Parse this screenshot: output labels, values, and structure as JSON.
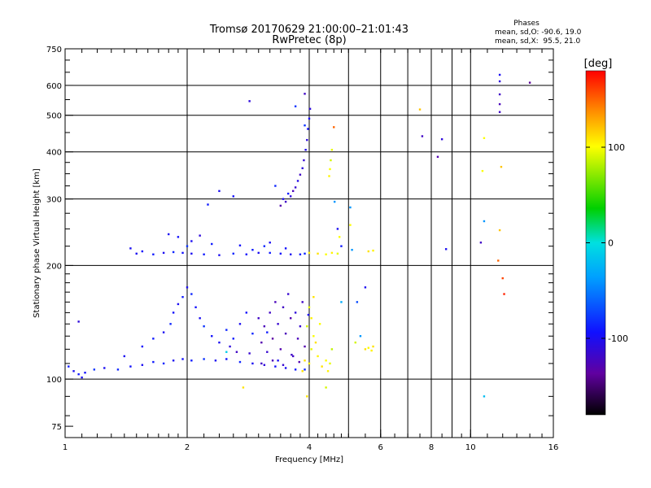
{
  "chart_data": {
    "type": "scatter",
    "title": "Tromsø 20170629 21:00:00–21:01:43",
    "subtitle": "RwPretec (8p)",
    "xlabel": "Frequency [MHz]",
    "ylabel": "Stationary phase Virtual Height [km]",
    "xscale": "log",
    "yscale": "log",
    "xlim": [
      1,
      16
    ],
    "ylim": [
      70,
      750
    ],
    "xticks": [
      {
        "value": 1,
        "label": "1"
      },
      {
        "value": 2,
        "label": "2"
      },
      {
        "value": 4,
        "label": "4"
      },
      {
        "value": 6,
        "label": "6"
      },
      {
        "value": 8,
        "label": "8"
      },
      {
        "value": 10,
        "label": "10"
      },
      {
        "value": 16,
        "label": "16"
      }
    ],
    "yticks": [
      {
        "value": 75,
        "label": "75"
      },
      {
        "value": 100,
        "label": "100"
      },
      {
        "value": 200,
        "label": "200"
      },
      {
        "value": 300,
        "label": "300"
      },
      {
        "value": 400,
        "label": "400"
      },
      {
        "value": 500,
        "label": "500"
      },
      {
        "value": 600,
        "label": "600"
      },
      {
        "value": 750,
        "label": "750"
      }
    ],
    "x_gridlines": [
      2,
      4,
      5,
      6,
      7,
      8,
      9,
      10
    ],
    "y_gridlines": [
      100,
      200,
      300,
      400,
      500,
      600
    ],
    "legend_block": {
      "heading": "Phases",
      "line1": "mean, sd,O: -90.6, 19.0",
      "line2": "mean, sd,X:  95.5, 21.0"
    },
    "colorbar": {
      "label": "[deg]",
      "min": -180,
      "max": 180,
      "ticks": [
        {
          "value": 100,
          "label": "100"
        },
        {
          "value": 0,
          "label": "0"
        },
        {
          "value": -100,
          "label": "-100"
        }
      ]
    },
    "points": [
      [
        1.05,
        105,
        -100
      ],
      [
        1.08,
        103,
        -90
      ],
      [
        1.12,
        104,
        -95
      ],
      [
        1.18,
        106,
        -80
      ],
      [
        1.25,
        107,
        -100
      ],
      [
        1.35,
        106,
        -85
      ],
      [
        1.45,
        108,
        -95
      ],
      [
        1.55,
        109,
        -100
      ],
      [
        1.65,
        111,
        -90
      ],
      [
        1.75,
        110,
        -85
      ],
      [
        1.85,
        112,
        -100
      ],
      [
        1.95,
        113,
        -95
      ],
      [
        2.05,
        112,
        -90
      ],
      [
        2.2,
        113,
        -80
      ],
      [
        2.35,
        112,
        -100
      ],
      [
        2.5,
        113,
        -95
      ],
      [
        2.7,
        111,
        -85
      ],
      [
        2.9,
        110,
        -100
      ],
      [
        3.1,
        109,
        -110
      ],
      [
        3.3,
        108,
        -95
      ],
      [
        3.5,
        107,
        -100
      ],
      [
        3.7,
        106,
        -90
      ],
      [
        3.9,
        106,
        -85
      ],
      [
        1.08,
        142,
        -110
      ],
      [
        1.4,
        115,
        -100
      ],
      [
        1.55,
        122,
        -95
      ],
      [
        1.65,
        128,
        -90
      ],
      [
        1.75,
        133,
        -100
      ],
      [
        1.82,
        140,
        -85
      ],
      [
        1.85,
        150,
        -95
      ],
      [
        1.9,
        158,
        -100
      ],
      [
        1.95,
        165,
        -90
      ],
      [
        2.0,
        175,
        -100
      ],
      [
        2.05,
        168,
        -85
      ],
      [
        2.1,
        155,
        -95
      ],
      [
        2.15,
        145,
        -100
      ],
      [
        2.2,
        138,
        -80
      ],
      [
        2.3,
        130,
        -95
      ],
      [
        2.4,
        125,
        -100
      ],
      [
        2.5,
        135,
        -85
      ],
      [
        2.6,
        128,
        -90
      ],
      [
        2.7,
        140,
        -100
      ],
      [
        2.8,
        150,
        -95
      ],
      [
        2.9,
        132,
        -85
      ],
      [
        3.0,
        145,
        -120
      ],
      [
        3.05,
        125,
        -130
      ],
      [
        3.1,
        138,
        -125
      ],
      [
        3.15,
        118,
        -115
      ],
      [
        3.2,
        150,
        -120
      ],
      [
        3.25,
        128,
        -135
      ],
      [
        3.3,
        160,
        -125
      ],
      [
        3.35,
        140,
        -115
      ],
      [
        3.4,
        120,
        -130
      ],
      [
        3.45,
        155,
        -120
      ],
      [
        3.5,
        132,
        -125
      ],
      [
        3.55,
        168,
        -115
      ],
      [
        3.6,
        145,
        -130
      ],
      [
        3.65,
        115,
        -120
      ],
      [
        3.7,
        150,
        -110
      ],
      [
        3.75,
        128,
        -125
      ],
      [
        3.8,
        138,
        -115
      ],
      [
        3.85,
        160,
        -120
      ],
      [
        3.9,
        122,
        -130
      ],
      [
        3.98,
        148,
        -100
      ],
      [
        3.05,
        110,
        -120
      ],
      [
        3.25,
        112,
        -125
      ],
      [
        3.45,
        109,
        -115
      ],
      [
        3.62,
        116,
        -120
      ],
      [
        3.78,
        111,
        -130
      ],
      [
        2.55,
        122,
        -110
      ],
      [
        2.65,
        118,
        -120
      ],
      [
        2.85,
        117,
        -115
      ],
      [
        3.15,
        133,
        -90
      ],
      [
        3.35,
        112,
        -100
      ],
      [
        3.9,
        112,
        110
      ],
      [
        4.0,
        110,
        105
      ],
      [
        4.05,
        120,
        95
      ],
      [
        4.1,
        130,
        100
      ],
      [
        4.15,
        125,
        110
      ],
      [
        4.2,
        115,
        105
      ],
      [
        4.3,
        108,
        110
      ],
      [
        4.4,
        112,
        100
      ],
      [
        4.5,
        110,
        95
      ],
      [
        4.55,
        120,
        85
      ],
      [
        3.95,
        138,
        90
      ],
      [
        4.05,
        145,
        105
      ],
      [
        4.0,
        155,
        95
      ],
      [
        4.25,
        140,
        100
      ],
      [
        4.1,
        165,
        110
      ],
      [
        3.85,
        105,
        110
      ],
      [
        4.45,
        105,
        105
      ],
      [
        5.5,
        120,
        110
      ],
      [
        5.6,
        121,
        100
      ],
      [
        5.7,
        119,
        105
      ],
      [
        5.75,
        122,
        110
      ],
      [
        5.35,
        130,
        -40
      ],
      [
        5.2,
        125,
        90
      ],
      [
        1.5,
        215,
        -100
      ],
      [
        1.55,
        218,
        -95
      ],
      [
        1.65,
        214,
        -90
      ],
      [
        1.75,
        216,
        -100
      ],
      [
        1.85,
        217,
        -85
      ],
      [
        1.95,
        216,
        -95
      ],
      [
        2.05,
        215,
        -100
      ],
      [
        2.2,
        214,
        -90
      ],
      [
        2.4,
        213,
        -100
      ],
      [
        2.6,
        215,
        -85
      ],
      [
        2.8,
        214,
        -95
      ],
      [
        3.0,
        216,
        -100
      ],
      [
        3.2,
        216,
        -90
      ],
      [
        3.4,
        215,
        -95
      ],
      [
        3.6,
        214,
        -100
      ],
      [
        3.8,
        214,
        -90
      ],
      [
        3.9,
        215,
        -85
      ],
      [
        1.8,
        242,
        -100
      ],
      [
        1.9,
        238,
        -95
      ],
      [
        2.05,
        232,
        -100
      ],
      [
        2.15,
        240,
        -110
      ],
      [
        2.3,
        228,
        -90
      ],
      [
        3.2,
        230,
        -100
      ],
      [
        3.5,
        222,
        -95
      ],
      [
        3.1,
        225,
        -85
      ],
      [
        2.9,
        220,
        -90
      ],
      [
        2.7,
        226,
        -95
      ],
      [
        1.45,
        222,
        -100
      ],
      [
        2.0,
        225,
        -80
      ],
      [
        4.0,
        216,
        105
      ],
      [
        4.2,
        215,
        110
      ],
      [
        4.4,
        214,
        100
      ],
      [
        4.55,
        216,
        105
      ],
      [
        4.7,
        215,
        95
      ],
      [
        5.1,
        220,
        -40
      ],
      [
        5.6,
        218,
        110
      ],
      [
        5.75,
        219,
        105
      ],
      [
        4.75,
        238,
        100
      ],
      [
        5.05,
        256,
        100
      ],
      [
        3.4,
        288,
        -130
      ],
      [
        3.5,
        295,
        -120
      ],
      [
        3.6,
        305,
        -110
      ],
      [
        3.65,
        315,
        -125
      ],
      [
        3.7,
        322,
        -115
      ],
      [
        3.75,
        335,
        -105
      ],
      [
        3.8,
        348,
        -120
      ],
      [
        3.85,
        362,
        -110
      ],
      [
        3.88,
        380,
        -115
      ],
      [
        3.92,
        405,
        -105
      ],
      [
        3.95,
        430,
        -110
      ],
      [
        3.97,
        460,
        -95
      ],
      [
        4.0,
        490,
        -100
      ],
      [
        4.02,
        520,
        -110
      ],
      [
        3.55,
        310,
        -90
      ],
      [
        3.45,
        300,
        -100
      ],
      [
        3.3,
        325,
        -85
      ],
      [
        3.9,
        470,
        -80
      ],
      [
        2.25,
        290,
        -90
      ],
      [
        2.4,
        315,
        -100
      ],
      [
        2.6,
        305,
        -95
      ],
      [
        2.85,
        545,
        -110
      ],
      [
        3.9,
        570,
        -120
      ],
      [
        3.7,
        528,
        -80
      ],
      [
        4.5,
        360,
        100
      ],
      [
        4.52,
        380,
        90
      ],
      [
        4.55,
        405,
        95
      ],
      [
        4.48,
        345,
        105
      ],
      [
        4.6,
        465,
        150
      ],
      [
        4.62,
        295,
        -40
      ],
      [
        4.7,
        250,
        -100
      ],
      [
        4.8,
        225,
        -90
      ],
      [
        5.05,
        285,
        -40
      ],
      [
        5.25,
        160,
        -70
      ],
      [
        4.8,
        160,
        -30
      ],
      [
        5.5,
        175,
        -100
      ],
      [
        7.5,
        518,
        120
      ],
      [
        7.6,
        440,
        -120
      ],
      [
        8.3,
        388,
        -130
      ],
      [
        8.5,
        432,
        -110
      ],
      [
        8.7,
        221,
        -100
      ],
      [
        10.8,
        435,
        100
      ],
      [
        11.8,
        640,
        -100
      ],
      [
        11.8,
        615,
        -110
      ],
      [
        11.8,
        568,
        -120
      ],
      [
        11.8,
        535,
        -125
      ],
      [
        11.8,
        510,
        -120
      ],
      [
        11.9,
        365,
        120
      ],
      [
        11.8,
        248,
        120
      ],
      [
        11.7,
        206,
        150
      ],
      [
        12.0,
        185,
        160
      ],
      [
        12.1,
        168,
        170
      ],
      [
        10.8,
        262,
        -40
      ],
      [
        10.7,
        356,
        100
      ],
      [
        10.6,
        230,
        -120
      ],
      [
        10.8,
        90,
        -20
      ],
      [
        14.0,
        610,
        -140
      ],
      [
        1.02,
        108,
        -90
      ],
      [
        1.1,
        101,
        -100
      ],
      [
        2.5,
        118,
        -10
      ],
      [
        2.75,
        95,
        110
      ],
      [
        3.95,
        90,
        110
      ],
      [
        4.4,
        95,
        90
      ]
    ]
  }
}
